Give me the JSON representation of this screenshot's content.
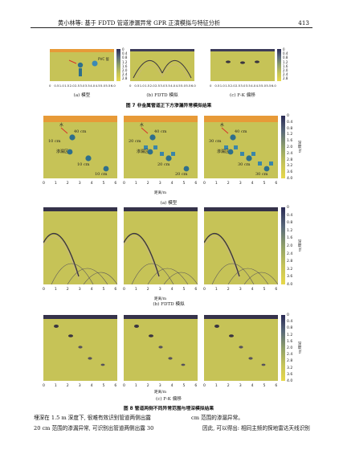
{
  "header": {
    "title": "黄小林等: 基于 FDTD 管道渗漏异常 GPR 正演模拟与特征分析",
    "page_number": "413"
  },
  "fig7": {
    "caption": "图 7 非金属管道正下方渗漏异常模拟结果",
    "subcaptions": [
      "(a) 模型",
      "(b) FDTD 模拟",
      "(c) F-K 偏移"
    ],
    "x_ticks": [
      "0",
      "0.5",
      "1.0",
      "1.5",
      "2.0",
      "2.5",
      "3.0",
      "3.5",
      "4.0",
      "4.5",
      "5.0",
      "5.5",
      "6.0"
    ],
    "depth_ticks": [
      "0",
      "0.4",
      "0.8",
      "1.2",
      "1.6",
      "2.0",
      "2.4",
      "2.8"
    ],
    "model_labels": {
      "pvc": "PVC 管"
    }
  },
  "fig8": {
    "caption": "图 8 管道两侧不同异常范围与埋深模拟结果",
    "subcaptions": [
      "(a) 模型",
      "(b) FDTD 模拟",
      "(c) F-K 偏移"
    ],
    "x_ticks": [
      "0",
      "1",
      "2",
      "3",
      "4",
      "5",
      "6"
    ],
    "xlabel": "距离/m",
    "depth_label": "深度/m",
    "depth_ticks": [
      "0",
      "0.4",
      "0.8",
      "1.2",
      "1.6",
      "2.0",
      "2.4",
      "2.8",
      "3.2",
      "3.6",
      "4.0"
    ],
    "model_panels": [
      {
        "labels": [
          "水",
          "40 cm",
          "10 cm",
          "渗漏区",
          "10 cm",
          "10 cm"
        ]
      },
      {
        "labels": [
          "水",
          "40 cm",
          "20 cm",
          "渗漏区",
          "20 cm",
          "20 cm"
        ]
      },
      {
        "labels": [
          "水",
          "40 cm",
          "30 cm",
          "渗漏区",
          "30 cm",
          "30 cm"
        ]
      }
    ]
  },
  "body_text": {
    "left": [
      "埋深在 1.5 m 深度下, 很难有效识别管道两侧出露",
      "20 cm 范围的渗漏异常, 可识别出管道两侧出露 30"
    ],
    "right": [
      "cm 范围的渗漏异常。",
      "因此, 可以得出: 相同主频的探地雷达天线识别"
    ]
  },
  "colors": {
    "background_yellow": "#c6c357",
    "top_band": "#e79a38",
    "accent_blue": "#2e6f8c",
    "arrow_red": "#d8322a"
  }
}
